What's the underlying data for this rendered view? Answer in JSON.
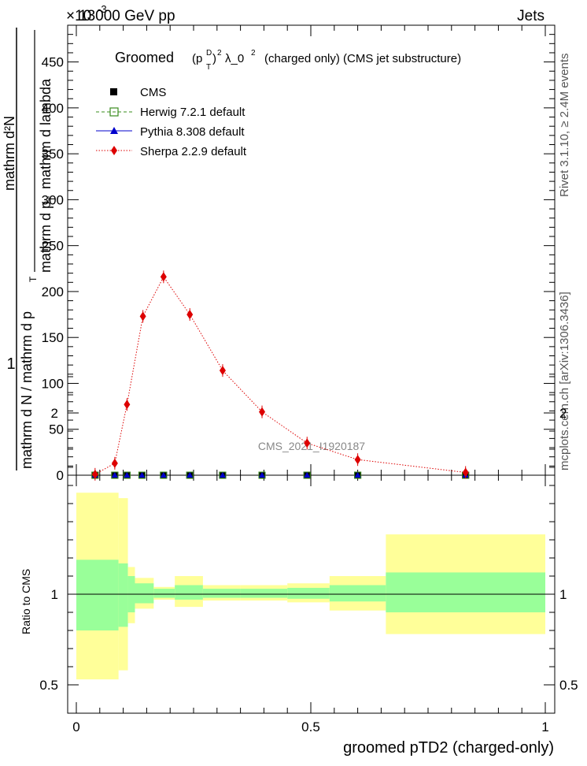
{
  "header": {
    "top_left": "13000 GeV pp",
    "top_right": "Jets",
    "exponent": "×10",
    "exponent_power": "-3"
  },
  "side": {
    "rivet": "Rivet 3.1.10, ≥ 2.4M events",
    "mcplots": "mcplots.cern.ch [arXiv:1306.3436]"
  },
  "chart_data": {
    "type": "line",
    "title_main": "Groomed",
    "title_formula": "(p",
    "title_rest": "(charged only) (CMS jet substructure)",
    "title_lambda": "λ_0",
    "analysis_label": "CMS_2021_I1920187",
    "ylabel_top": "1",
    "ylabel_bottom": "mathrm d N / mathrm d p",
    "ylabel_numerator": "mathrm d²N",
    "ylabel_denominator": "mathrm d p",
    "ylabel_denominator_rest": "mathrm d lambda",
    "ylabel_sub": "T",
    "ratio_ylabel": "Ratio to CMS",
    "xlabel": "groomed pTD2 (charged-only)",
    "xlim": [
      0,
      1.02
    ],
    "ylim": [
      0,
      490
    ],
    "ratio_ylim": [
      0.35,
      2.3
    ],
    "y_ticks": [
      0,
      50,
      100,
      150,
      200,
      250,
      300,
      350,
      400,
      450
    ],
    "ratio_ticks": [
      0.5,
      1,
      2
    ],
    "x_ticks": [
      0,
      0.5,
      1
    ],
    "legend": {
      "placement": "top-left",
      "entries": [
        {
          "name": "CMS",
          "color": "#000000",
          "marker": "square"
        },
        {
          "name": "Herwig 7.2.1 default",
          "color": "#3a8c1e",
          "marker": "open-square",
          "style": "dashed"
        },
        {
          "name": "Pythia 8.308 default",
          "color": "#0000cc",
          "marker": "triangle",
          "style": "solid"
        },
        {
          "name": "Sherpa 2.2.9 default",
          "color": "#dd0000",
          "marker": "diamond",
          "style": "dotted"
        }
      ]
    },
    "bin_edges": [
      0,
      0.045,
      0.09,
      0.115,
      0.15,
      0.2,
      0.26,
      0.34,
      0.44,
      0.54,
      0.66,
      1.0
    ],
    "cms_x": [
      0.04,
      0.082,
      0.108,
      0.14,
      0.186,
      0.242,
      0.312,
      0.396,
      0.492,
      0.6,
      0.83
    ],
    "cms_values": [
      0,
      0,
      0,
      0,
      0,
      0,
      0,
      0,
      0,
      0,
      0
    ],
    "sherpa_x": [
      0.04,
      0.082,
      0.108,
      0.142,
      0.186,
      0.242,
      0.312,
      0.396,
      0.492,
      0.6,
      0.83
    ],
    "sherpa_values": [
      1,
      13,
      77,
      173,
      216,
      175,
      114,
      69,
      35,
      17,
      3
    ],
    "ratio_bands": {
      "stat_sys_inner": [
        [
          0.8,
          1.19
        ],
        [
          0.82,
          1.17
        ],
        [
          0.9,
          1.1
        ],
        [
          0.95,
          1.06
        ],
        [
          0.98,
          1.03
        ],
        [
          0.97,
          1.05
        ],
        [
          0.98,
          1.03
        ],
        [
          0.98,
          1.03
        ],
        [
          0.975,
          1.035
        ],
        [
          0.96,
          1.05
        ],
        [
          0.9,
          1.12
        ]
      ],
      "total_outer": [
        [
          0.53,
          1.56
        ],
        [
          0.58,
          1.53
        ],
        [
          0.84,
          1.15
        ],
        [
          0.92,
          1.09
        ],
        [
          0.97,
          1.04
        ],
        [
          0.93,
          1.1
        ],
        [
          0.965,
          1.05
        ],
        [
          0.965,
          1.05
        ],
        [
          0.955,
          1.06
        ],
        [
          0.91,
          1.1
        ],
        [
          0.78,
          1.33
        ]
      ],
      "inner_color": "#99ff99",
      "outer_color": "#ffff99"
    }
  }
}
